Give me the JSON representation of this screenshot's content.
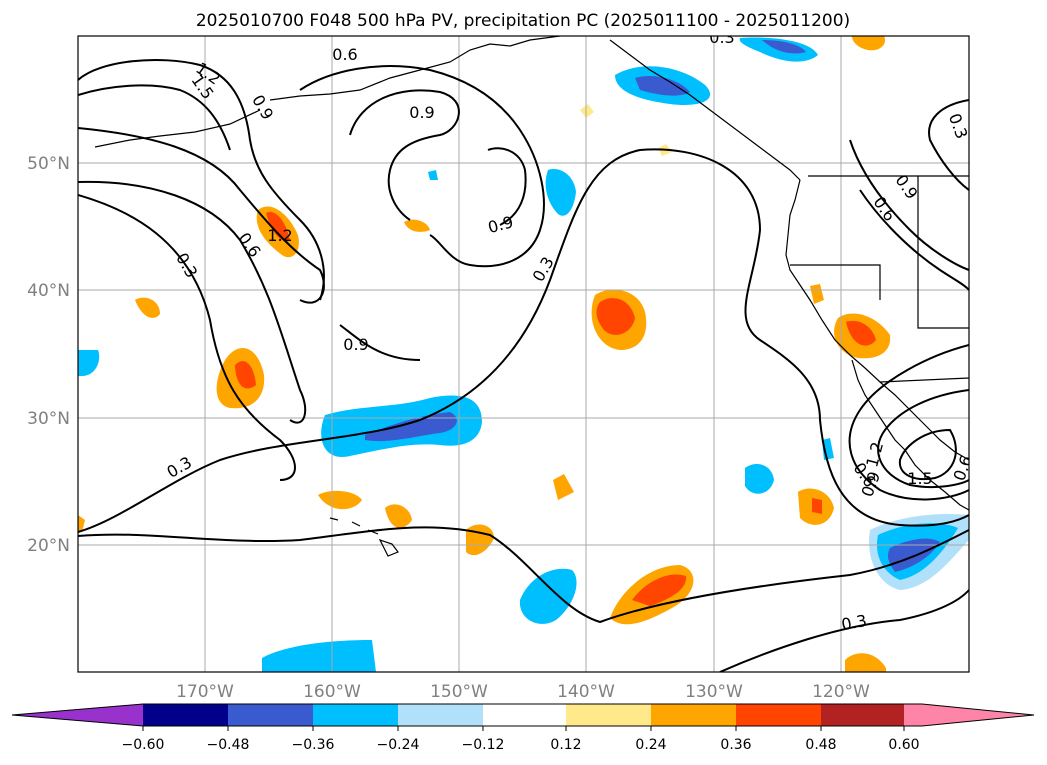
{
  "figure": {
    "title": "2025010700 F048 500 hPa PV, precipitation PC (2025011100 - 2025011200)"
  },
  "map": {
    "region": "North-East Pacific",
    "lon_range": [
      -180,
      -110
    ],
    "lat_range": [
      10,
      60
    ],
    "grid": true,
    "lat_ticks": [
      {
        "value": 20,
        "label": "20°N"
      },
      {
        "value": 30,
        "label": "30°N"
      },
      {
        "value": 40,
        "label": "40°N"
      },
      {
        "value": 50,
        "label": "50°N"
      }
    ],
    "lon_ticks": [
      {
        "value": -170,
        "label": "170°W"
      },
      {
        "value": -160,
        "label": "160°W"
      },
      {
        "value": -150,
        "label": "150°W"
      },
      {
        "value": -140,
        "label": "140°W"
      },
      {
        "value": -130,
        "label": "130°W"
      },
      {
        "value": -120,
        "label": "120°W"
      }
    ],
    "contour_labels": [
      "0.6",
      "1.2",
      "1.5",
      "0.9",
      "0.9",
      "0.9",
      "1.2",
      "0.6",
      "0.3",
      "0.9",
      "0.3",
      "0.3",
      "0.3",
      "0.6",
      "0.9",
      "0.3",
      "0.6",
      "1.2",
      "1.5",
      "0.9",
      "0.3",
      "0.6"
    ]
  },
  "colorbar": {
    "ticks": [
      "−0.60",
      "−0.48",
      "−0.36",
      "−0.24",
      "−0.12",
      "0.12",
      "0.24",
      "0.36",
      "0.48",
      "0.60"
    ],
    "colors": [
      "#9932cc",
      "#00008b",
      "#3a5bd0",
      "#00bfff",
      "#b0e0fa",
      "#ffffff",
      "#ffe98a",
      "#ffa500",
      "#ff4500",
      "#b22222",
      "#ff85a8"
    ],
    "extend": "both"
  },
  "colors": {
    "coast": "#000000",
    "contour": "#000000",
    "grid": "#aaaaaa"
  }
}
